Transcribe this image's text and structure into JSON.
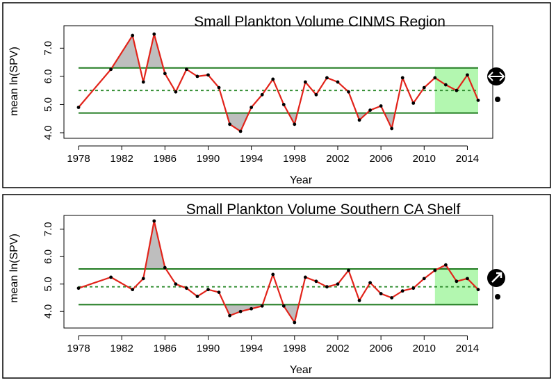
{
  "chart_data": [
    {
      "type": "line",
      "title": "Small Plankton Volume CINMS Region",
      "xlabel": "Year",
      "ylabel": "mean ln(SPV)",
      "xlim": [
        1978,
        2015
      ],
      "ylim": [
        4.0,
        7.6
      ],
      "xticks": [
        1978,
        1982,
        1986,
        1990,
        1994,
        1998,
        2002,
        2006,
        2010,
        2014
      ],
      "yticks": [
        4.0,
        5.0,
        6.0,
        7.0
      ],
      "ytick_labels": [
        "4.0",
        "5.0",
        "6.0",
        "7.0"
      ],
      "mean": 5.5,
      "upper_sd": 6.3,
      "lower_sd": 4.7,
      "recent_window": [
        2011,
        2015
      ],
      "colors": {
        "line": "#e2231a",
        "sd_lines": "#1f7a1f",
        "mean_line": "#2e8b2e",
        "window": "#b3f7b0",
        "shade": "#bebebe"
      },
      "trend_icon": "double-arrow-icon",
      "mean_icon": "dot-icon",
      "series": [
        {
          "x": [
            1978,
            1981,
            1983,
            1984,
            1985,
            1986,
            1987,
            1988,
            1989,
            1990,
            1991,
            1992,
            1993,
            1994,
            1995,
            1996,
            1997,
            1998,
            1999,
            2000,
            2001,
            2002,
            2003,
            2004,
            2005,
            2006,
            2007,
            2008,
            2009,
            2010,
            2011,
            2012,
            2013,
            2014,
            2015
          ],
          "values": [
            4.9,
            6.25,
            7.45,
            5.8,
            7.5,
            6.1,
            5.45,
            6.25,
            6.0,
            6.05,
            5.6,
            4.3,
            4.05,
            4.9,
            5.35,
            5.9,
            5.0,
            4.3,
            5.8,
            5.35,
            5.95,
            5.8,
            5.45,
            4.45,
            4.8,
            4.95,
            4.15,
            5.95,
            5.05,
            5.6,
            5.95,
            5.7,
            5.5,
            6.05,
            5.15
          ]
        }
      ]
    },
    {
      "type": "line",
      "title": "Small Plankton Volume Southern CA Shelf",
      "xlabel": "Year",
      "ylabel": "mean ln(SPV)",
      "xlim": [
        1978,
        2015
      ],
      "ylim": [
        3.6,
        7.3
      ],
      "xticks": [
        1978,
        1982,
        1986,
        1990,
        1994,
        1998,
        2002,
        2006,
        2010,
        2014
      ],
      "yticks": [
        4.0,
        5.0,
        6.0,
        7.0
      ],
      "ytick_labels": [
        "4.0",
        "5.0",
        "6.0",
        "7.0"
      ],
      "mean": 4.9,
      "upper_sd": 5.55,
      "lower_sd": 4.25,
      "recent_window": [
        2011,
        2015
      ],
      "colors": {
        "line": "#e2231a",
        "sd_lines": "#1f7a1f",
        "mean_line": "#2e8b2e",
        "window": "#b3f7b0",
        "shade": "#bebebe"
      },
      "trend_icon": "diagonal-arrow-icon",
      "mean_icon": "dot-icon",
      "series": [
        {
          "x": [
            1978,
            1981,
            1983,
            1984,
            1985,
            1986,
            1987,
            1988,
            1989,
            1990,
            1991,
            1992,
            1993,
            1994,
            1995,
            1996,
            1997,
            1998,
            1999,
            2000,
            2001,
            2002,
            2003,
            2004,
            2005,
            2006,
            2007,
            2008,
            2009,
            2010,
            2011,
            2012,
            2013,
            2014,
            2015
          ],
          "values": [
            4.85,
            5.25,
            4.8,
            5.2,
            7.3,
            5.6,
            5.0,
            4.85,
            4.55,
            4.8,
            4.7,
            3.85,
            4.0,
            4.1,
            4.2,
            5.35,
            4.2,
            3.6,
            5.25,
            5.1,
            4.9,
            5.0,
            5.5,
            4.4,
            5.05,
            4.65,
            4.5,
            4.75,
            4.85,
            5.2,
            5.5,
            5.7,
            5.1,
            5.2,
            4.8
          ]
        }
      ]
    }
  ]
}
